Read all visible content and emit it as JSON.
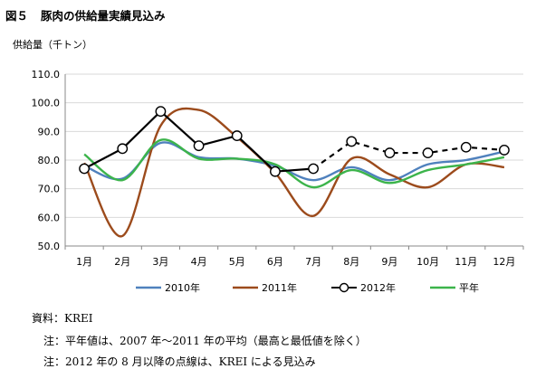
{
  "page": {
    "title_num": "図５",
    "title_text": "豚肉の供給量実績見込み",
    "source": "資料：KREI",
    "note1": "注：平年値は、2007 年～2011 年の平均（最高と最低値を除く）",
    "note2": "注：2012 年の 8 月以降の点線は、KREI による見込み"
  },
  "chart_data": {
    "type": "line",
    "ylabel": "供給量（千トン）",
    "ylim": [
      50,
      110
    ],
    "yticks": [
      50,
      60,
      70,
      80,
      90,
      100,
      110
    ],
    "ytick_labels": [
      "50.0",
      "60.0",
      "70.0",
      "80.0",
      "90.0",
      "100.0",
      "110.0"
    ],
    "categories": [
      "1月",
      "2月",
      "3月",
      "4月",
      "5月",
      "6月",
      "7月",
      "8月",
      "9月",
      "10月",
      "11月",
      "12月"
    ],
    "grid": true,
    "legend": "bottom",
    "series": [
      {
        "name": "2010年",
        "color": "#4f81bd",
        "style": "solid",
        "smooth": true,
        "values": [
          78,
          73.5,
          86,
          81,
          80.5,
          78,
          73,
          77.5,
          73,
          78.5,
          80,
          83
        ]
      },
      {
        "name": "2011年",
        "color": "#9c4b1c",
        "style": "solid",
        "smooth": true,
        "values": [
          79,
          53.5,
          92,
          97.5,
          88,
          75.5,
          60.5,
          80.5,
          75,
          70.5,
          78.5,
          77.5
        ]
      },
      {
        "name": "2012年",
        "color": "#000000",
        "style": "solid-then-dashed",
        "dash_from_index": 7,
        "marker": "open-circle",
        "smooth": false,
        "values": [
          77,
          84,
          97,
          85,
          88.5,
          76,
          77,
          86.5,
          82.5,
          82.5,
          84.5,
          83.5
        ]
      },
      {
        "name": "平年",
        "color": "#3cb44b",
        "style": "solid",
        "smooth": true,
        "values": [
          82,
          73,
          87,
          80.5,
          80.5,
          78.5,
          70.5,
          76.5,
          72,
          76.5,
          78.5,
          81
        ]
      }
    ]
  }
}
